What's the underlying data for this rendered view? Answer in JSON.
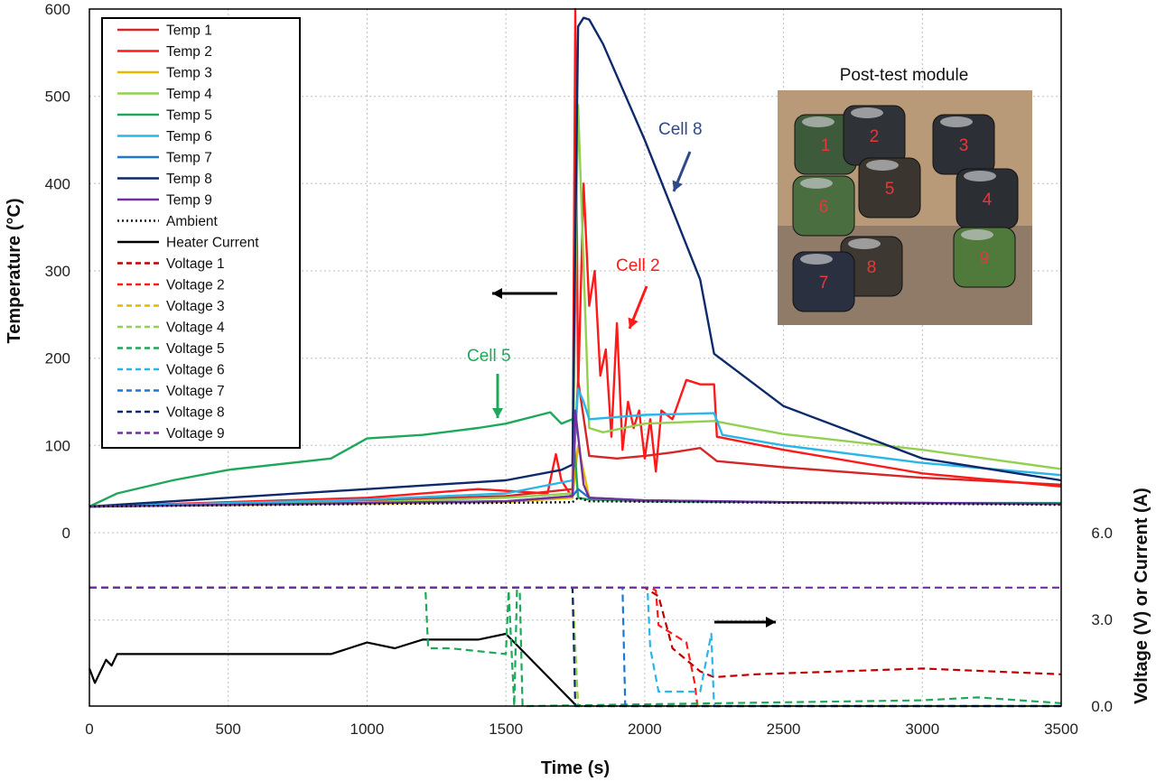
{
  "chart_data": {
    "type": "line",
    "xlabel": "Time (s)",
    "ylabel_left": "Temperature (°C)",
    "ylabel_right": "Voltage (V) or Current (A)",
    "xlim": [
      0,
      3500
    ],
    "x_ticks": [
      0,
      500,
      1000,
      1500,
      2000,
      2500,
      3000,
      3500
    ],
    "x_tick_labels": [
      "0",
      "500",
      "1000",
      "1500",
      "2000",
      "2500",
      "3000",
      "3500"
    ],
    "y_left_ticks": [
      0,
      100,
      200,
      300,
      400,
      500,
      600
    ],
    "y_left_tick_labels": [
      "0",
      "100",
      "200",
      "300",
      "400",
      "500",
      "600"
    ],
    "y_right_ticks": [
      0.0,
      3.0,
      6.0
    ],
    "y_right_tick_labels": [
      "0.0",
      "3.0",
      "6.0"
    ],
    "grid": true,
    "legend_position": "top-left",
    "legend": [
      {
        "label": "Temp 1",
        "color": "#d62728",
        "dash": "solid"
      },
      {
        "label": "Temp 2",
        "color": "#ff1a1a",
        "dash": "solid"
      },
      {
        "label": "Temp 3",
        "color": "#e6b800",
        "dash": "solid"
      },
      {
        "label": "Temp 4",
        "color": "#92d050",
        "dash": "solid"
      },
      {
        "label": "Temp 5",
        "color": "#1fa85a",
        "dash": "solid",
        "label_color": "#ff1a1a"
      },
      {
        "label": "Temp 6",
        "color": "#29b6e8",
        "dash": "solid"
      },
      {
        "label": "Temp 7",
        "color": "#1f77d0",
        "dash": "solid"
      },
      {
        "label": "Temp 8",
        "color": "#0d2a6b",
        "dash": "solid"
      },
      {
        "label": "Temp 9",
        "color": "#7030a0",
        "dash": "solid"
      },
      {
        "label": "Ambient",
        "color": "#111111",
        "dash": "dotted"
      },
      {
        "label": "Heater Current",
        "color": "#000000",
        "dash": "solid"
      },
      {
        "label": "Voltage 1",
        "color": "#c00000",
        "dash": "dashed"
      },
      {
        "label": "Voltage 2",
        "color": "#ff1a1a",
        "dash": "dashed"
      },
      {
        "label": "Voltage 3",
        "color": "#e6b800",
        "dash": "dashed"
      },
      {
        "label": "Voltage 4",
        "color": "#92d050",
        "dash": "dashed"
      },
      {
        "label": "Voltage 5",
        "color": "#1fa85a",
        "dash": "dashed"
      },
      {
        "label": "Voltage 6",
        "color": "#29b6e8",
        "dash": "dashed"
      },
      {
        "label": "Voltage 7",
        "color": "#1f77d0",
        "dash": "dashed"
      },
      {
        "label": "Voltage 8",
        "color": "#0d2a6b",
        "dash": "dashed"
      },
      {
        "label": "Voltage 9",
        "color": "#7030a0",
        "dash": "dashed"
      }
    ],
    "temperature_series": [
      {
        "name": "Temp 1",
        "color": "#d62728",
        "x": [
          0,
          500,
          1000,
          1500,
          1740,
          1760,
          1800,
          1900,
          2000,
          2100,
          2200,
          2260,
          2500,
          3000,
          3500
        ],
        "y": [
          30,
          33,
          37,
          42,
          50,
          175,
          88,
          85,
          88,
          92,
          97,
          82,
          75,
          63,
          55
        ]
      },
      {
        "name": "Temp 2",
        "color": "#ff1a1a",
        "x": [
          0,
          1000,
          1400,
          1650,
          1680,
          1700,
          1740,
          1750,
          1760,
          1780,
          1800,
          1820,
          1840,
          1860,
          1880,
          1900,
          1920,
          1940,
          1960,
          1980,
          2000,
          2020,
          2040,
          2060,
          2100,
          2150,
          2200,
          2250,
          2260,
          2500,
          3000,
          3500
        ],
        "y": [
          30,
          40,
          50,
          45,
          90,
          60,
          40,
          600,
          160,
          400,
          260,
          300,
          180,
          210,
          110,
          240,
          95,
          150,
          120,
          140,
          85,
          130,
          70,
          140,
          130,
          175,
          170,
          170,
          110,
          95,
          68,
          53
        ]
      },
      {
        "name": "Temp 3",
        "color": "#e6b800",
        "x": [
          0,
          1500,
          1740,
          1760,
          1800,
          2000,
          2500,
          3000,
          3500
        ],
        "y": [
          30,
          35,
          40,
          100,
          40,
          37,
          35,
          34,
          33
        ]
      },
      {
        "name": "Temp 4",
        "color": "#92d050",
        "x": [
          0,
          1000,
          1500,
          1740,
          1760,
          1800,
          1850,
          2000,
          2250,
          2500,
          3000,
          3500
        ],
        "y": [
          30,
          35,
          40,
          45,
          490,
          120,
          115,
          125,
          128,
          113,
          95,
          73
        ]
      },
      {
        "name": "Temp 5",
        "color": "#1fa85a",
        "x": [
          0,
          100,
          300,
          500,
          870,
          1000,
          1200,
          1400,
          1500,
          1660,
          1700,
          1740,
          1760,
          1800,
          2000,
          2500,
          3000,
          3500
        ],
        "y": [
          30,
          45,
          60,
          72,
          85,
          108,
          112,
          120,
          125,
          138,
          125,
          130,
          40,
          38,
          36,
          35,
          34,
          34
        ]
      },
      {
        "name": "Temp 6",
        "color": "#29b6e8",
        "x": [
          0,
          1000,
          1500,
          1740,
          1760,
          1780,
          1800,
          2000,
          2250,
          2280,
          2500,
          3000,
          3500
        ],
        "y": [
          30,
          38,
          45,
          60,
          165,
          150,
          130,
          135,
          137,
          112,
          100,
          80,
          66
        ]
      },
      {
        "name": "Temp 7",
        "color": "#1f77d0",
        "x": [
          0,
          1500,
          1740,
          1760,
          1800,
          2000,
          2500,
          3000,
          3500
        ],
        "y": [
          30,
          36,
          42,
          50,
          40,
          37,
          35,
          34,
          33
        ]
      },
      {
        "name": "Temp 8",
        "color": "#0d2a6b",
        "x": [
          0,
          500,
          1000,
          1500,
          1700,
          1740,
          1760,
          1780,
          1800,
          1850,
          2000,
          2200,
          2250,
          2500,
          3000,
          3500
        ],
        "y": [
          30,
          40,
          50,
          60,
          72,
          78,
          580,
          590,
          588,
          560,
          450,
          290,
          205,
          145,
          85,
          60
        ]
      },
      {
        "name": "Temp 9",
        "color": "#7030a0",
        "x": [
          0,
          1500,
          1740,
          1750,
          1780,
          1800,
          2000,
          2500,
          3000,
          3500
        ],
        "y": [
          30,
          36,
          42,
          140,
          55,
          40,
          37,
          35,
          34,
          33
        ]
      },
      {
        "name": "Ambient",
        "color": "#111111",
        "dash": "dotted",
        "x": [
          0,
          1740,
          1760,
          1800,
          3500
        ],
        "y": [
          30,
          35,
          40,
          36,
          32
        ]
      }
    ],
    "voltage_current_series": [
      {
        "name": "Heater Current",
        "color": "#000000",
        "x": [
          0,
          20,
          60,
          80,
          100,
          870,
          1000,
          1100,
          1200,
          1400,
          1500,
          1750
        ],
        "y": [
          1.3,
          0.8,
          1.6,
          1.4,
          1.8,
          1.8,
          2.2,
          2.0,
          2.3,
          2.3,
          2.5,
          0.05
        ]
      },
      {
        "name": "Voltage 1",
        "color": "#c00000",
        "dash": "dashed",
        "x": [
          0,
          2000,
          2050,
          2100,
          2200,
          2250,
          2400,
          2700,
          3000,
          3500
        ],
        "y": [
          4.1,
          4.1,
          3.8,
          2.0,
          1.2,
          1.0,
          1.1,
          1.2,
          1.3,
          1.1
        ]
      },
      {
        "name": "Voltage 2",
        "color": "#ff1a1a",
        "dash": "dashed",
        "x": [
          0,
          2020,
          2040,
          2050,
          2100,
          2150,
          2180,
          2190
        ],
        "y": [
          4.1,
          4.1,
          4.0,
          2.8,
          2.5,
          2.2,
          0.8,
          0.0
        ]
      },
      {
        "name": "Voltage 3",
        "color": "#e6b800",
        "dash": "dashed",
        "x": [
          0,
          1740,
          1760,
          3500
        ],
        "y": [
          4.1,
          4.1,
          0.0,
          0.0
        ]
      },
      {
        "name": "Voltage 4",
        "color": "#92d050",
        "dash": "dashed",
        "x": [
          0,
          1740,
          1760,
          3500
        ],
        "y": [
          4.1,
          4.1,
          0.0,
          0.0
        ]
      },
      {
        "name": "Voltage 5",
        "color": "#1fa85a",
        "dash": "dashed",
        "x": [
          0,
          1210,
          1220,
          1300,
          1500,
          1510,
          1530,
          1540,
          1550,
          1560,
          1570,
          3000,
          3200,
          3500
        ],
        "y": [
          4.1,
          4.1,
          2.0,
          2.0,
          1.8,
          4.0,
          0.0,
          4.0,
          4.0,
          0.0,
          0.0,
          0.2,
          0.3,
          0.1
        ]
      },
      {
        "name": "Voltage 6",
        "color": "#29b6e8",
        "dash": "dashed",
        "x": [
          0,
          2010,
          2020,
          2050,
          2200,
          2240,
          2250,
          3500
        ],
        "y": [
          4.1,
          4.1,
          2.0,
          0.5,
          0.5,
          2.5,
          0.0,
          0.0
        ]
      },
      {
        "name": "Voltage 7",
        "color": "#1f77d0",
        "dash": "dashed",
        "x": [
          0,
          1920,
          1930,
          3500
        ],
        "y": [
          4.1,
          4.1,
          0.0,
          0.0
        ]
      },
      {
        "name": "Voltage 8",
        "color": "#0d2a6b",
        "dash": "dashed",
        "x": [
          0,
          1740,
          1750,
          3500
        ],
        "y": [
          4.1,
          4.1,
          0.0,
          0.0
        ]
      },
      {
        "name": "Voltage 9",
        "color": "#7030a0",
        "dash": "dashed",
        "x": [
          0,
          3500
        ],
        "y": [
          4.1,
          4.1
        ]
      }
    ],
    "annotations": {
      "cell8": {
        "text": "Cell 8",
        "color": "#2e4a8a"
      },
      "cell2": {
        "text": "Cell 2",
        "color": "#ff1a1a"
      },
      "cell5": {
        "text": "Cell 5",
        "color": "#1fa85a"
      }
    },
    "inset": {
      "title": "Post-test module",
      "cell_numbers": [
        "1",
        "2",
        "3",
        "6",
        "5",
        "4",
        "8",
        "9",
        "7"
      ]
    }
  }
}
